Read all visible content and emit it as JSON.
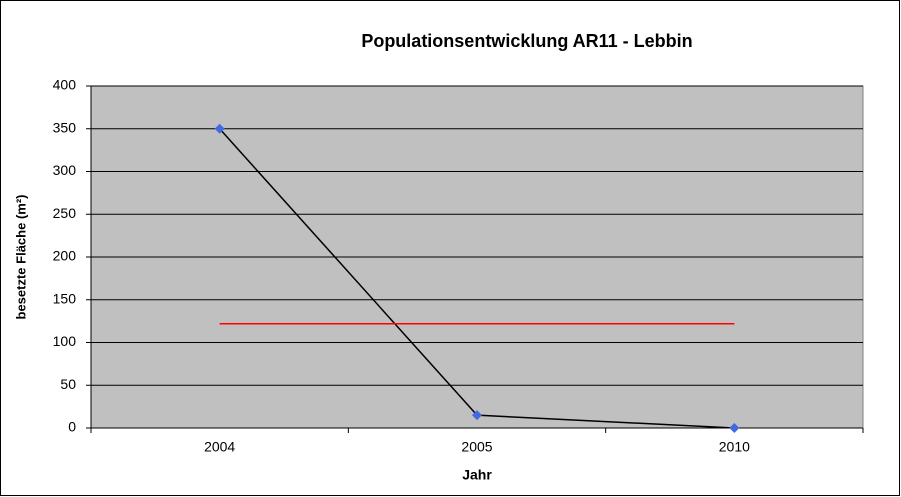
{
  "chart_data": {
    "type": "line",
    "title": "Populationsentwicklung AR11  - Lebbin",
    "xlabel": "Jahr",
    "ylabel": "besetzte Fläche (m²)",
    "categories": [
      "2004",
      "2005",
      "2010"
    ],
    "series": [
      {
        "color": "#000000",
        "marker_color": "#4169e1",
        "values": [
          350,
          15,
          0
        ]
      },
      {
        "color": "#ff0000",
        "values": [
          122,
          122,
          122
        ]
      }
    ],
    "ylim": [
      0,
      400
    ],
    "yticks": [
      0,
      50,
      100,
      150,
      200,
      250,
      300,
      350,
      400
    ],
    "grid": true,
    "plot_background": "#c0c0c0"
  }
}
